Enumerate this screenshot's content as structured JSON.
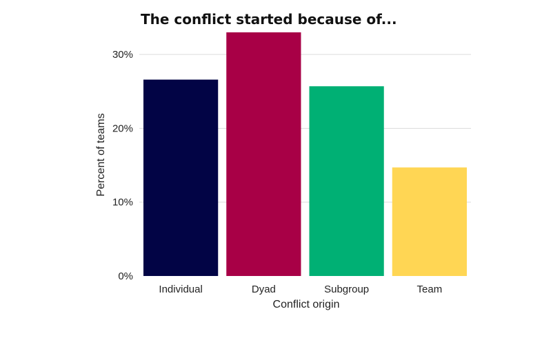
{
  "chart_data": {
    "type": "bar",
    "title": "The conflict started because of...",
    "xlabel": "Conflict origin",
    "ylabel": "Percent of teams",
    "categories": [
      "Individual",
      "Dyad",
      "Subgroup",
      "Team"
    ],
    "values": [
      26.6,
      33.0,
      25.7,
      14.7
    ],
    "colors": [
      "#020445",
      "#a80046",
      "#00b074",
      "#ffd654"
    ],
    "ylim": [
      0,
      33
    ],
    "yticks": [
      0,
      10,
      20,
      30
    ],
    "ytick_labels": [
      "0%",
      "10%",
      "20%",
      "30%"
    ],
    "grid": true,
    "legend": "none"
  }
}
